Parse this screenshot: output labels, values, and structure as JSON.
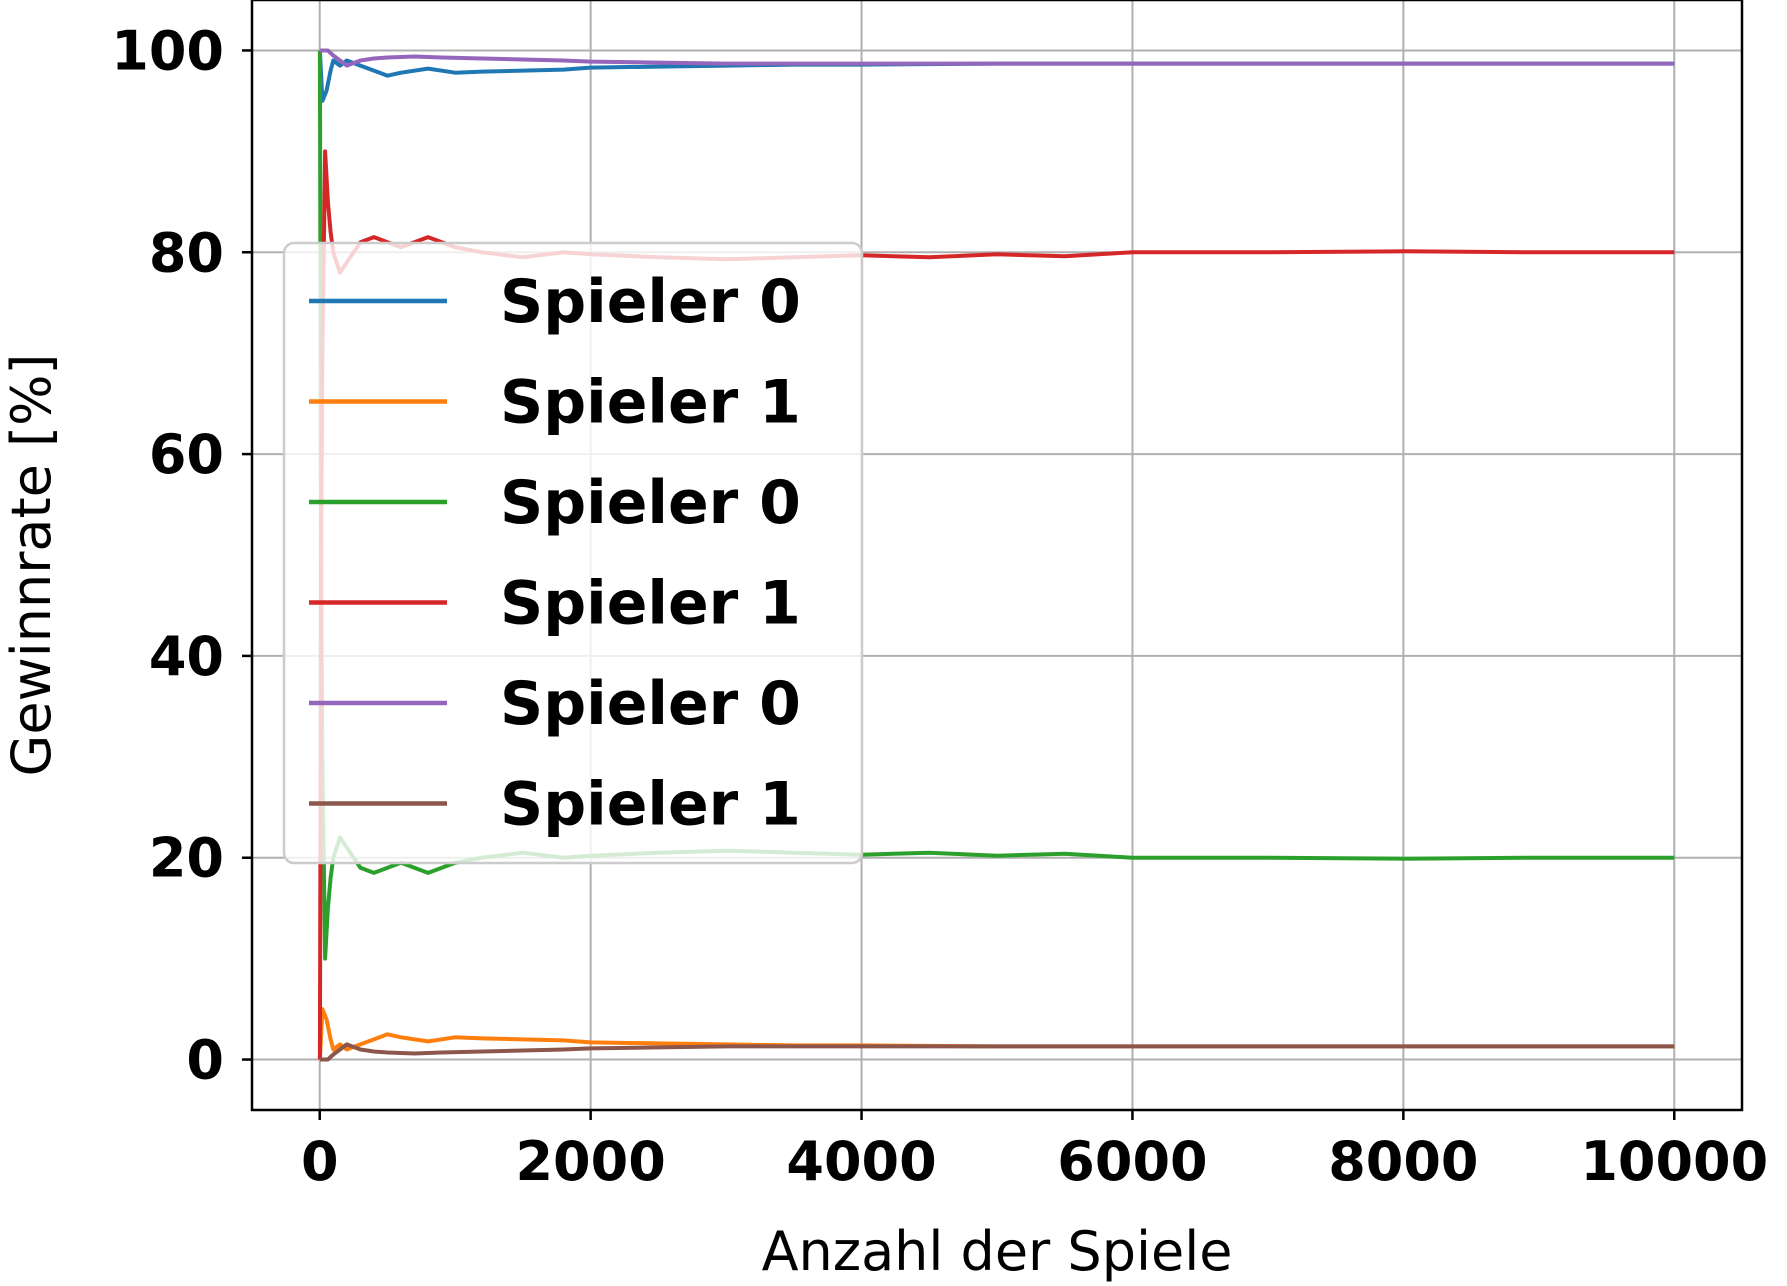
{
  "chart_data": {
    "type": "line",
    "xlabel": "Anzahl der Spiele",
    "ylabel": "Gewinnrate [%]",
    "xlim": [
      -500,
      10500
    ],
    "ylim": [
      -5,
      105
    ],
    "xticks": [
      0,
      2000,
      4000,
      6000,
      8000,
      10000
    ],
    "yticks": [
      0,
      20,
      40,
      60,
      80,
      100
    ],
    "grid": true,
    "legend_position": "center-left",
    "series": [
      {
        "name": "Spieler 0",
        "color": "#1f77b4",
        "x": [
          1,
          20,
          50,
          80,
          100,
          150,
          200,
          300,
          400,
          500,
          600,
          800,
          1000,
          1200,
          1500,
          1800,
          2000,
          2500,
          3000,
          3500,
          4000,
          5000,
          6000,
          7000,
          8000,
          9000,
          10000
        ],
        "y": [
          100,
          95,
          96,
          98,
          99,
          98.5,
          99,
          98.5,
          98,
          97.5,
          97.8,
          98.2,
          97.8,
          97.9,
          98.0,
          98.1,
          98.3,
          98.4,
          98.5,
          98.6,
          98.6,
          98.7,
          98.7,
          98.7,
          98.7,
          98.7,
          98.7
        ]
      },
      {
        "name": "Spieler 1",
        "color": "#ff7f0e",
        "x": [
          1,
          20,
          50,
          80,
          100,
          150,
          200,
          300,
          400,
          500,
          600,
          800,
          1000,
          1200,
          1500,
          1800,
          2000,
          2500,
          3000,
          3500,
          4000,
          5000,
          6000,
          7000,
          8000,
          9000,
          10000
        ],
        "y": [
          0,
          5,
          4,
          2,
          1,
          1.5,
          1,
          1.5,
          2,
          2.5,
          2.2,
          1.8,
          2.2,
          2.1,
          2.0,
          1.9,
          1.7,
          1.6,
          1.5,
          1.4,
          1.4,
          1.3,
          1.3,
          1.3,
          1.3,
          1.3,
          1.3
        ]
      },
      {
        "name": "Spieler 0",
        "color": "#2ca02c",
        "x": [
          1,
          10,
          20,
          40,
          60,
          80,
          100,
          150,
          200,
          300,
          400,
          500,
          600,
          800,
          1000,
          1200,
          1500,
          1800,
          2000,
          2500,
          3000,
          3500,
          4000,
          4500,
          5000,
          5500,
          6000,
          7000,
          8000,
          9000,
          10000
        ],
        "y": [
          100,
          50,
          30,
          10,
          15,
          18,
          20,
          22,
          21,
          19,
          18.5,
          19,
          19.5,
          18.5,
          19.5,
          20,
          20.5,
          20,
          20.2,
          20.5,
          20.7,
          20.5,
          20.3,
          20.5,
          20.2,
          20.4,
          20.0,
          20.0,
          19.9,
          20.0,
          20.0
        ]
      },
      {
        "name": "Spieler 1",
        "color": "#d62728",
        "x": [
          1,
          10,
          20,
          40,
          60,
          80,
          100,
          150,
          200,
          300,
          400,
          500,
          600,
          800,
          1000,
          1200,
          1500,
          1800,
          2000,
          2500,
          3000,
          3500,
          4000,
          4500,
          5000,
          5500,
          6000,
          7000,
          8000,
          9000,
          10000
        ],
        "y": [
          0,
          50,
          70,
          90,
          85,
          82,
          80,
          78,
          79,
          81,
          81.5,
          81,
          80.5,
          81.5,
          80.5,
          80,
          79.5,
          80,
          79.8,
          79.5,
          79.3,
          79.5,
          79.7,
          79.5,
          79.8,
          79.6,
          80.0,
          80.0,
          80.1,
          80.0,
          80.0
        ]
      },
      {
        "name": "Spieler 0",
        "color": "#9467bd",
        "x": [
          1,
          20,
          40,
          60,
          100,
          150,
          200,
          300,
          400,
          500,
          700,
          900,
          1200,
          1500,
          1800,
          2000,
          2500,
          3000,
          3500,
          4000,
          5000,
          6000,
          7000,
          8000,
          9000,
          10000
        ],
        "y": [
          100,
          100,
          100,
          100,
          99.5,
          99,
          98.5,
          99,
          99.2,
          99.3,
          99.4,
          99.3,
          99.2,
          99.1,
          99.0,
          98.9,
          98.8,
          98.7,
          98.7,
          98.7,
          98.7,
          98.7,
          98.7,
          98.7,
          98.7,
          98.7
        ]
      },
      {
        "name": "Spieler 1",
        "color": "#8c564b",
        "x": [
          1,
          20,
          40,
          60,
          100,
          150,
          200,
          300,
          400,
          500,
          700,
          900,
          1200,
          1500,
          1800,
          2000,
          2500,
          3000,
          3500,
          4000,
          5000,
          6000,
          7000,
          8000,
          9000,
          10000
        ],
        "y": [
          0,
          0,
          0,
          0,
          0.5,
          1,
          1.5,
          1,
          0.8,
          0.7,
          0.6,
          0.7,
          0.8,
          0.9,
          1.0,
          1.1,
          1.2,
          1.3,
          1.3,
          1.3,
          1.3,
          1.3,
          1.3,
          1.3,
          1.3,
          1.3
        ]
      }
    ]
  }
}
